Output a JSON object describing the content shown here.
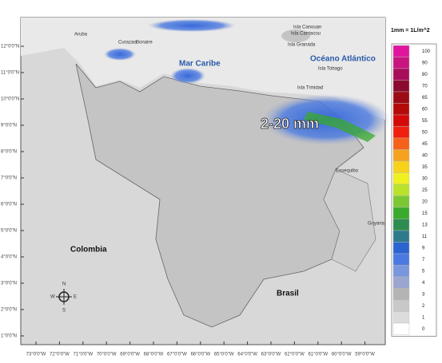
{
  "map": {
    "labels": {
      "aruba": "Aruba",
      "curazao": "Curazao",
      "bonaire": "Bonaire",
      "mar_caribe": "Mar Caribe",
      "canouan": "Isla Canouan",
      "carriacou": "Isla Carriacou",
      "granada": "Isla Granada",
      "oceano": "Océano Atlántico",
      "tobago": "Isla Tobago",
      "trinidad": "Isla Trinidad",
      "rain": "2-20 mm",
      "colombia": "Colombia",
      "brasil": "Brasil",
      "guyana": "Guyana",
      "essequibo": "Essequibo"
    },
    "compass": {
      "n": "N",
      "s": "S",
      "e": "E",
      "w": "W"
    },
    "latitudes": [
      "12°0'0\"N",
      "11°0'0\"N",
      "10°0'0\"N",
      "9°0'0\"N",
      "8°0'0\"N",
      "7°0'0\"N",
      "6°0'0\"N",
      "5°0'0\"N",
      "4°0'0\"N",
      "3°0'0\"N",
      "2°0'0\"N",
      "1°0'0\"N"
    ],
    "longitudes": [
      "73°0'0\"W",
      "72°0'0\"W",
      "71°0'0\"W",
      "70°0'0\"W",
      "69°0'0\"W",
      "68°0'0\"W",
      "67°0'0\"W",
      "66°0'0\"W",
      "65°0'0\"W",
      "64°0'0\"W",
      "63°0'0\"W",
      "62°0'0\"W",
      "61°0'0\"W",
      "60°0'0\"W",
      "59°0'0\"W"
    ]
  },
  "legend": {
    "title": "1mm = 1L/m^2",
    "levels": [
      {
        "value": 100,
        "color": "#e0159e"
      },
      {
        "value": 90,
        "color": "#c8157f"
      },
      {
        "value": 80,
        "color": "#a80d5a"
      },
      {
        "value": 70,
        "color": "#8c0a2e"
      },
      {
        "value": 65,
        "color": "#9c0b14"
      },
      {
        "value": 60,
        "color": "#b50a0a"
      },
      {
        "value": 55,
        "color": "#d40a0a"
      },
      {
        "value": 50,
        "color": "#f02010"
      },
      {
        "value": 45,
        "color": "#f5601a"
      },
      {
        "value": 40,
        "color": "#f6a21e"
      },
      {
        "value": 35,
        "color": "#f7d21a"
      },
      {
        "value": 30,
        "color": "#f0f020"
      },
      {
        "value": 25,
        "color": "#b8e32a"
      },
      {
        "value": 20,
        "color": "#7cc832"
      },
      {
        "value": 15,
        "color": "#3aaa2c"
      },
      {
        "value": 13,
        "color": "#2e8c50"
      },
      {
        "value": 11,
        "color": "#2d7a8a"
      },
      {
        "value": 9,
        "color": "#2a64d0"
      },
      {
        "value": 7,
        "color": "#4a7ae0"
      },
      {
        "value": 5,
        "color": "#7a96dc"
      },
      {
        "value": 4,
        "color": "#9aa6d0"
      },
      {
        "value": 3,
        "color": "#b4b4b4"
      },
      {
        "value": 2,
        "color": "#c8c8c8"
      },
      {
        "value": 1,
        "color": "#dcdcdc"
      },
      {
        "value": 0,
        "color": "#ffffff"
      }
    ]
  }
}
